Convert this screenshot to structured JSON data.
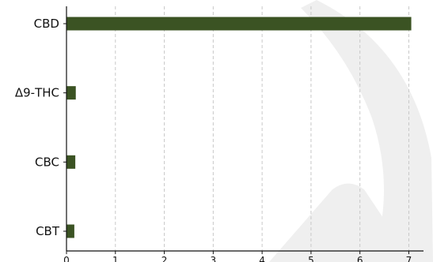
{
  "chart_data": {
    "type": "bar",
    "orientation": "horizontal",
    "categories": [
      "CBD",
      "Δ9-THC",
      "CBC",
      "CBT"
    ],
    "values": [
      7.05,
      0.19,
      0.18,
      0.16
    ],
    "xlim": [
      0,
      7.3
    ],
    "x_ticks": [
      0,
      1,
      2,
      3,
      4,
      5,
      6,
      7
    ],
    "grid": "vertical-dashed",
    "bar_color": "#3b5323",
    "grid_color": "#c8c8c8",
    "background_watermark_color": "#eeeeee"
  }
}
